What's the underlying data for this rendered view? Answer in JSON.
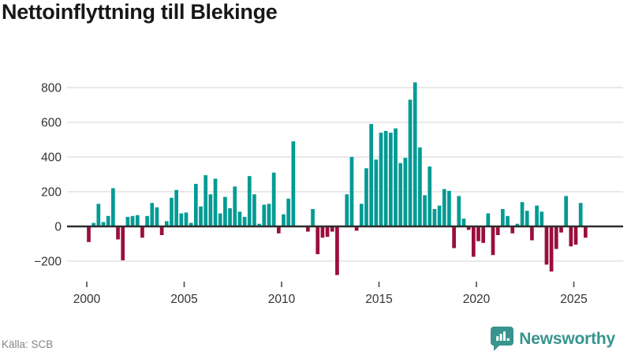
{
  "title": "Nettoinflyttning till Blekinge",
  "source": "Källa: SCB",
  "brand": {
    "name": "Newsworthy",
    "icon": "bar-chart-speech-bubble-icon"
  },
  "colors": {
    "positive_bar": "#009b94",
    "negative_bar": "#9b0e3c",
    "zero_line": "#2e2e2e",
    "gridline": "#e9e9e9",
    "axis_text": "#333333",
    "tick_mark": "#4a4a4a",
    "title_text": "#171717",
    "source_text": "#85858e",
    "brand_teal": "#38948e",
    "background": "#ffffff"
  },
  "chart_data": {
    "type": "bar",
    "title": "Nettoinflyttning till Blekinge",
    "x_unit": "quarter",
    "start_year": 2000,
    "start_quarter": 1,
    "end_label": "2025Q3",
    "x_tick_labels": [
      "2000",
      "2005",
      "2010",
      "2015",
      "2020",
      "2025"
    ],
    "y_ticks": [
      800,
      600,
      400,
      200,
      0,
      -200
    ],
    "ylim": [
      -300,
      870
    ],
    "grid": true,
    "legend": "none",
    "series": [
      {
        "name": "Nettoinflyttning",
        "values": [
          -90,
          20,
          130,
          25,
          60,
          220,
          -75,
          -195,
          55,
          60,
          65,
          -65,
          60,
          135,
          110,
          -50,
          30,
          165,
          210,
          75,
          80,
          20,
          245,
          115,
          295,
          185,
          275,
          75,
          170,
          105,
          230,
          85,
          55,
          290,
          185,
          15,
          125,
          130,
          310,
          -40,
          70,
          160,
          490,
          5,
          5,
          -30,
          100,
          -160,
          -65,
          -60,
          -30,
          -280,
          5,
          185,
          400,
          -25,
          130,
          335,
          590,
          385,
          540,
          550,
          540,
          565,
          365,
          395,
          730,
          830,
          455,
          180,
          345,
          100,
          120,
          215,
          205,
          -125,
          175,
          45,
          -20,
          -175,
          -85,
          -95,
          75,
          -165,
          -50,
          100,
          60,
          -40,
          15,
          140,
          90,
          -80,
          120,
          85,
          -220,
          -260,
          -130,
          -35,
          175,
          -115,
          -105,
          135,
          -65
        ]
      }
    ]
  }
}
